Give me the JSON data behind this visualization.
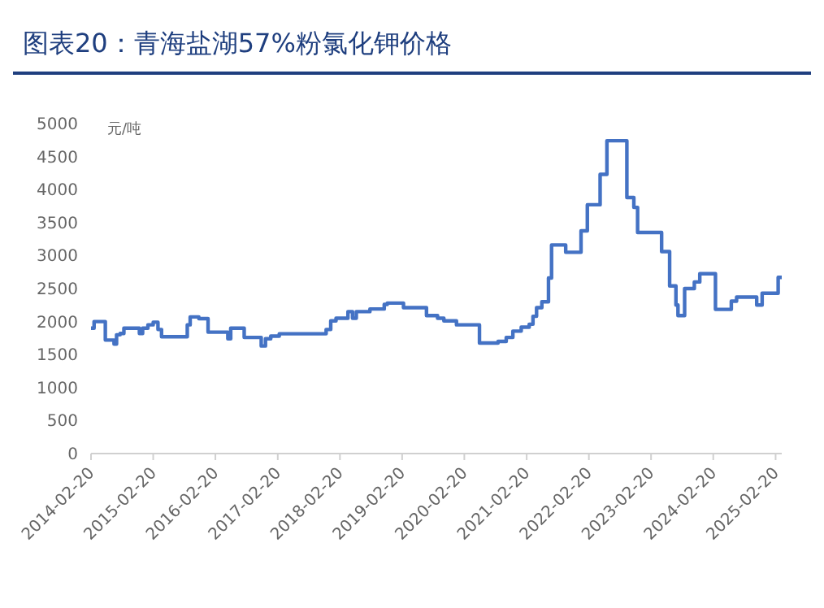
{
  "chart_data": {
    "type": "step",
    "title": "图表20：青海盐湖57%粉氯化钾价格",
    "ylabel": "元/吨",
    "x": [
      "2014-02-20",
      "2014-03-10",
      "2014-05-15",
      "2014-07-05",
      "2014-07-20",
      "2014-08-10",
      "2014-09-01",
      "2014-12-01",
      "2014-12-20",
      "2015-01-20",
      "2015-02-20",
      "2015-03-20",
      "2015-04-10",
      "2015-09-08",
      "2015-09-25",
      "2015-11-15",
      "2016-01-08",
      "2016-05-03",
      "2016-05-20",
      "2016-08-07",
      "2016-11-15",
      "2016-12-10",
      "2017-01-10",
      "2017-03-01",
      "2017-12-01",
      "2017-12-28",
      "2018-01-28",
      "2018-04-08",
      "2018-05-05",
      "2018-05-27",
      "2018-08-15",
      "2018-11-07",
      "2018-11-25",
      "2019-02-28",
      "2019-07-13",
      "2019-09-16",
      "2019-10-23",
      "2020-01-05",
      "2020-05-19",
      "2020-09-05",
      "2020-10-23",
      "2020-12-01",
      "2021-01-19",
      "2021-03-07",
      "2021-03-29",
      "2021-04-19",
      "2021-05-20",
      "2021-06-28",
      "2021-07-16",
      "2021-10-07",
      "2022-01-05",
      "2022-02-11",
      "2022-04-27",
      "2022-06-06",
      "2022-10-01",
      "2022-11-11",
      "2022-12-03",
      "2023-04-23",
      "2023-06-09",
      "2023-07-16",
      "2023-07-28",
      "2023-09-05",
      "2023-11-01",
      "2023-12-03",
      "2024-03-04",
      "2024-06-05",
      "2024-07-06",
      "2024-11-01",
      "2024-12-03",
      "2025-03-07",
      "2025-03-28"
    ],
    "series": [
      {
        "color": "#4472c4",
        "values": [
          1900,
          2000,
          1720,
          1660,
          1800,
          1820,
          1900,
          1820,
          1900,
          1950,
          1990,
          1880,
          1770,
          1950,
          2070,
          2045,
          1840,
          1740,
          1900,
          1760,
          1630,
          1740,
          1780,
          1815,
          1880,
          2010,
          2050,
          2150,
          2050,
          2150,
          2190,
          2260,
          2280,
          2210,
          2090,
          2050,
          2010,
          1950,
          1675,
          1700,
          1760,
          1855,
          1915,
          1960,
          2080,
          2210,
          2300,
          2660,
          3160,
          3050,
          3375,
          3770,
          4230,
          4740,
          3880,
          3730,
          3350,
          3060,
          2540,
          2250,
          2090,
          2500,
          2600,
          2725,
          2185,
          2310,
          2370,
          2250,
          2430,
          2670,
          2670
        ]
      }
    ],
    "xlim": [
      "2014-02-20",
      "2025-03-28"
    ],
    "xticks": [
      "2014-02-20",
      "2015-02-20",
      "2016-02-20",
      "2017-02-20",
      "2018-02-20",
      "2019-02-20",
      "2020-02-20",
      "2021-02-20",
      "2022-02-20",
      "2023-02-20",
      "2024-02-20",
      "2025-02-20"
    ],
    "ylim": [
      0,
      5000
    ],
    "yticks": [
      0,
      500,
      1000,
      1500,
      2000,
      2500,
      3000,
      3500,
      4000,
      4500,
      5000
    ]
  }
}
